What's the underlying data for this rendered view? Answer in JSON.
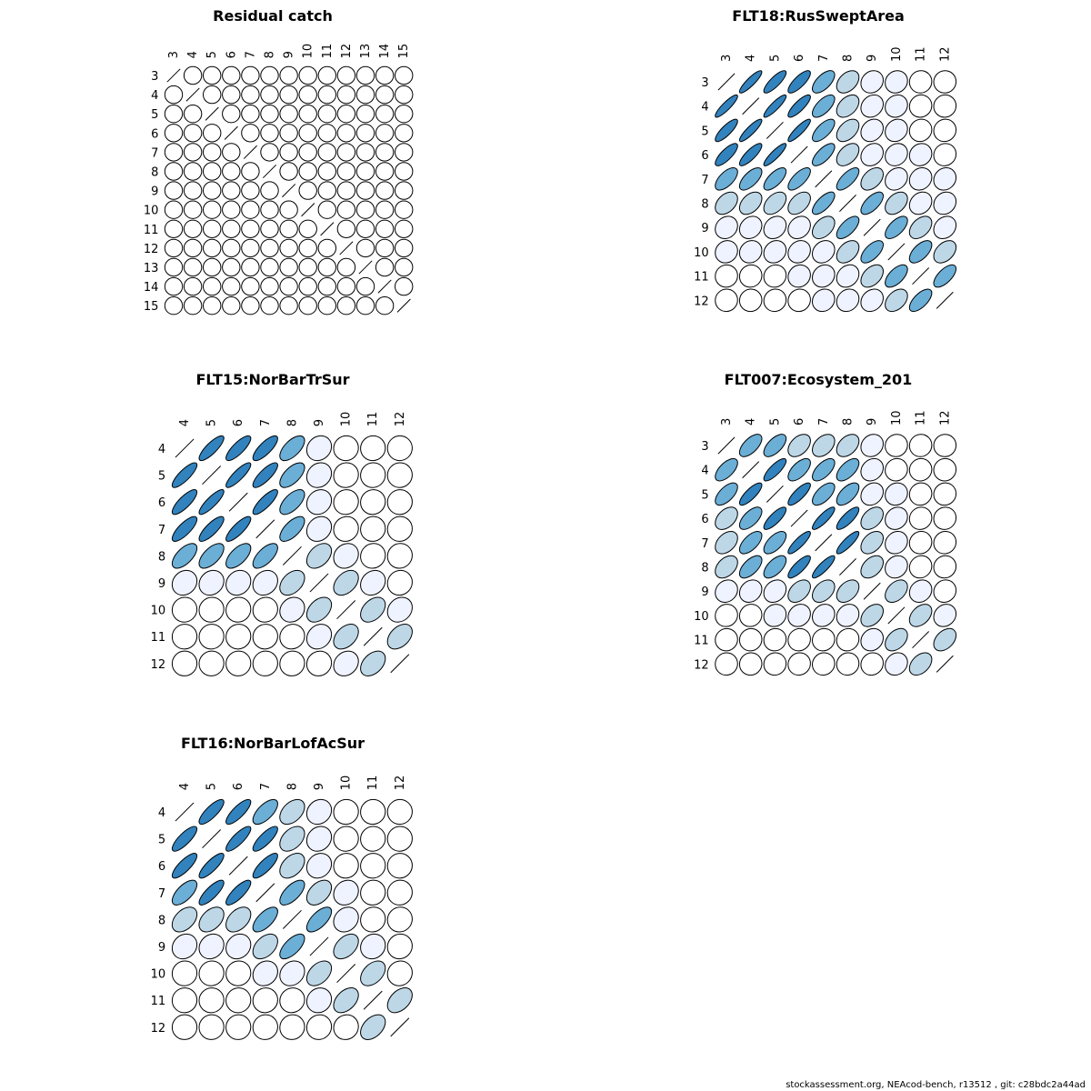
{
  "footer": "stockassessment.org, NEAcod-bench, r13512 , git: c28bdc2a44ad",
  "colors": {
    "outline": "#000000",
    "background": "#ffffff"
  },
  "chart_data": [
    {
      "type": "heatmap",
      "title": "Residual catch",
      "ages": [
        "3",
        "4",
        "5",
        "6",
        "7",
        "8",
        "9",
        "10",
        "11",
        "12",
        "13",
        "14",
        "15"
      ],
      "correlation": [
        [
          1,
          0,
          0,
          0,
          0,
          0,
          0,
          0,
          0,
          0,
          0,
          0,
          0
        ],
        [
          0,
          1,
          0,
          0,
          0,
          0,
          0,
          0,
          0,
          0,
          0,
          0,
          0
        ],
        [
          0,
          0,
          1,
          0,
          0,
          0,
          0,
          0,
          0,
          0,
          0,
          0,
          0
        ],
        [
          0,
          0,
          0,
          1,
          0,
          0,
          0,
          0,
          0,
          0,
          0,
          0,
          0
        ],
        [
          0,
          0,
          0,
          0,
          1,
          0,
          0,
          0,
          0,
          0,
          0,
          0,
          0
        ],
        [
          0,
          0,
          0,
          0,
          0,
          1,
          0,
          0,
          0,
          0,
          0,
          0,
          0
        ],
        [
          0,
          0,
          0,
          0,
          0,
          0,
          1,
          0,
          0,
          0,
          0,
          0,
          0
        ],
        [
          0,
          0,
          0,
          0,
          0,
          0,
          0,
          1,
          0,
          0,
          0,
          0,
          0
        ],
        [
          0,
          0,
          0,
          0,
          0,
          0,
          0,
          0,
          1,
          0,
          0,
          0,
          0
        ],
        [
          0,
          0,
          0,
          0,
          0,
          0,
          0,
          0,
          0,
          1,
          0,
          0,
          0
        ],
        [
          0,
          0,
          0,
          0,
          0,
          0,
          0,
          0,
          0,
          0,
          1,
          0,
          0
        ],
        [
          0,
          0,
          0,
          0,
          0,
          0,
          0,
          0,
          0,
          0,
          0,
          1,
          0
        ],
        [
          0,
          0,
          0,
          0,
          0,
          0,
          0,
          0,
          0,
          0,
          0,
          0,
          1
        ]
      ]
    },
    {
      "type": "heatmap",
      "title": "FLT18:RusSweptArea",
      "ages": [
        "3",
        "4",
        "5",
        "6",
        "7",
        "8",
        "9",
        "10",
        "11",
        "12"
      ],
      "correlation": [
        [
          1,
          0.88,
          0.82,
          0.78,
          0.62,
          0.4,
          0.15,
          0.1,
          0.03,
          0.02
        ],
        [
          0.88,
          1,
          0.88,
          0.82,
          0.65,
          0.42,
          0.18,
          0.12,
          0.05,
          0.03
        ],
        [
          0.82,
          0.88,
          1,
          0.88,
          0.68,
          0.45,
          0.2,
          0.15,
          0.07,
          0.05
        ],
        [
          0.78,
          0.82,
          0.88,
          1,
          0.7,
          0.45,
          0.2,
          0.16,
          0.1,
          0.06
        ],
        [
          0.62,
          0.65,
          0.68,
          0.7,
          1,
          0.7,
          0.42,
          0.2,
          0.15,
          0.12
        ],
        [
          0.4,
          0.42,
          0.45,
          0.45,
          0.7,
          1,
          0.65,
          0.4,
          0.2,
          0.15
        ],
        [
          0.15,
          0.18,
          0.2,
          0.2,
          0.42,
          0.65,
          1,
          0.62,
          0.42,
          0.2
        ],
        [
          0.1,
          0.12,
          0.15,
          0.16,
          0.2,
          0.4,
          0.62,
          1,
          0.6,
          0.4
        ],
        [
          0.03,
          0.05,
          0.07,
          0.1,
          0.15,
          0.2,
          0.42,
          0.6,
          1,
          0.65
        ],
        [
          0.02,
          0.03,
          0.05,
          0.06,
          0.12,
          0.15,
          0.2,
          0.4,
          0.65,
          1
        ]
      ]
    },
    {
      "type": "heatmap",
      "title": "FLT15:NorBarTrSur",
      "ages": [
        "4",
        "5",
        "6",
        "7",
        "8",
        "9",
        "10",
        "11",
        "12"
      ],
      "correlation": [
        [
          1,
          0.82,
          0.8,
          0.78,
          0.62,
          0.15,
          0.03,
          0.02,
          0.01
        ],
        [
          0.82,
          1,
          0.85,
          0.8,
          0.62,
          0.15,
          0.05,
          0.03,
          0.02
        ],
        [
          0.8,
          0.85,
          1,
          0.82,
          0.62,
          0.15,
          0.05,
          0.04,
          0.02
        ],
        [
          0.78,
          0.8,
          0.82,
          1,
          0.65,
          0.18,
          0.06,
          0.04,
          0.03
        ],
        [
          0.62,
          0.62,
          0.62,
          0.65,
          1,
          0.4,
          0.15,
          0.06,
          0.04
        ],
        [
          0.15,
          0.15,
          0.15,
          0.18,
          0.4,
          1,
          0.4,
          0.18,
          0.06
        ],
        [
          0.03,
          0.05,
          0.05,
          0.06,
          0.15,
          0.4,
          1,
          0.4,
          0.18
        ],
        [
          0.02,
          0.03,
          0.04,
          0.04,
          0.06,
          0.18,
          0.4,
          1,
          0.4
        ],
        [
          0.01,
          0.02,
          0.02,
          0.03,
          0.04,
          0.06,
          0.18,
          0.4,
          1
        ]
      ]
    },
    {
      "type": "heatmap",
      "title": "FLT007:Ecosystem_201",
      "ages": [
        "3",
        "4",
        "5",
        "6",
        "7",
        "8",
        "9",
        "10",
        "11",
        "12"
      ],
      "correlation": [
        [
          1,
          0.62,
          0.62,
          0.42,
          0.4,
          0.4,
          0.15,
          0.05,
          0.03,
          0.02
        ],
        [
          0.62,
          1,
          0.8,
          0.62,
          0.62,
          0.6,
          0.18,
          0.06,
          0.04,
          0.03
        ],
        [
          0.62,
          0.8,
          1,
          0.8,
          0.62,
          0.6,
          0.2,
          0.1,
          0.05,
          0.04
        ],
        [
          0.42,
          0.62,
          0.8,
          1,
          0.85,
          0.8,
          0.4,
          0.15,
          0.06,
          0.05
        ],
        [
          0.4,
          0.62,
          0.62,
          0.85,
          1,
          0.85,
          0.4,
          0.15,
          0.06,
          0.05
        ],
        [
          0.4,
          0.6,
          0.6,
          0.8,
          0.85,
          1,
          0.4,
          0.15,
          0.08,
          0.05
        ],
        [
          0.15,
          0.18,
          0.2,
          0.4,
          0.4,
          0.4,
          1,
          0.4,
          0.15,
          0.08
        ],
        [
          0.05,
          0.06,
          0.1,
          0.15,
          0.15,
          0.15,
          0.4,
          1,
          0.4,
          0.15
        ],
        [
          0.03,
          0.04,
          0.05,
          0.06,
          0.06,
          0.08,
          0.15,
          0.4,
          1,
          0.4
        ],
        [
          0.02,
          0.03,
          0.04,
          0.05,
          0.05,
          0.05,
          0.08,
          0.15,
          0.4,
          1
        ]
      ]
    },
    {
      "type": "heatmap",
      "title": "FLT16:NorBarLofAcSur",
      "ages": [
        "4",
        "5",
        "6",
        "7",
        "8",
        "9",
        "10",
        "11",
        "12"
      ],
      "correlation": [
        [
          1,
          0.8,
          0.8,
          0.65,
          0.42,
          0.15,
          0.03,
          0.02,
          0.01
        ],
        [
          0.8,
          1,
          0.82,
          0.8,
          0.42,
          0.15,
          0.04,
          0.03,
          0.02
        ],
        [
          0.8,
          0.82,
          1,
          0.8,
          0.42,
          0.15,
          0.04,
          0.03,
          0.02
        ],
        [
          0.65,
          0.8,
          0.8,
          1,
          0.65,
          0.42,
          0.15,
          0.04,
          0.03
        ],
        [
          0.42,
          0.42,
          0.42,
          0.65,
          1,
          0.65,
          0.18,
          0.06,
          0.04
        ],
        [
          0.15,
          0.15,
          0.15,
          0.42,
          0.65,
          1,
          0.42,
          0.1,
          0.05
        ],
        [
          0.03,
          0.04,
          0.04,
          0.15,
          0.18,
          0.42,
          1,
          0.42,
          0.06
        ],
        [
          0.02,
          0.03,
          0.03,
          0.04,
          0.06,
          0.1,
          0.42,
          1,
          0.42
        ],
        [
          0.01,
          0.02,
          0.02,
          0.03,
          0.04,
          0.05,
          0.06,
          0.42,
          1
        ]
      ]
    }
  ]
}
